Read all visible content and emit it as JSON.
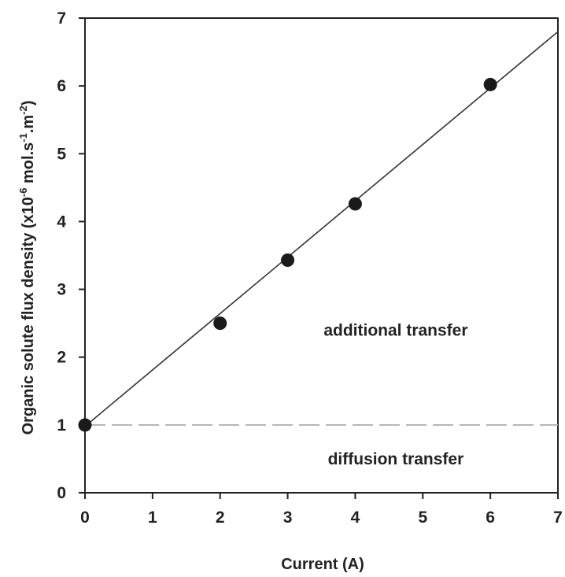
{
  "chart_data": {
    "type": "scatter",
    "xlabel": "Current (A)",
    "ylabel": {
      "prefix": "Organic solute flux density (x10",
      "exp1": "-6",
      "mid1": " mol.s",
      "exp2": "-1",
      "mid2": ".m",
      "exp3": "-2",
      "suffix": ")"
    },
    "xlim": [
      0,
      7
    ],
    "ylim": [
      0,
      7
    ],
    "xticks": [
      "0",
      "1",
      "2",
      "3",
      "4",
      "5",
      "6",
      "7"
    ],
    "yticks": [
      "0",
      "1",
      "2",
      "3",
      "4",
      "5",
      "6",
      "7"
    ],
    "grid": false,
    "points": [
      {
        "x": 0,
        "y": 1.0
      },
      {
        "x": 2,
        "y": 2.5
      },
      {
        "x": 3,
        "y": 3.43
      },
      {
        "x": 4,
        "y": 4.26
      },
      {
        "x": 6,
        "y": 6.02
      }
    ],
    "fit_line": {
      "x": [
        0,
        7
      ],
      "y": [
        0.98,
        6.8
      ]
    },
    "baseline": {
      "y": 1.0,
      "style": "dashed"
    },
    "annotations": [
      {
        "text": "additional transfer",
        "x": 4.6,
        "y": 2.4
      },
      {
        "text": "diffusion transfer",
        "x": 4.6,
        "y": 0.5
      }
    ],
    "colors": {
      "points": "#1a1a1a",
      "fit_line": "#333333",
      "baseline": "#aaaaaa",
      "axes": "#222222"
    }
  }
}
